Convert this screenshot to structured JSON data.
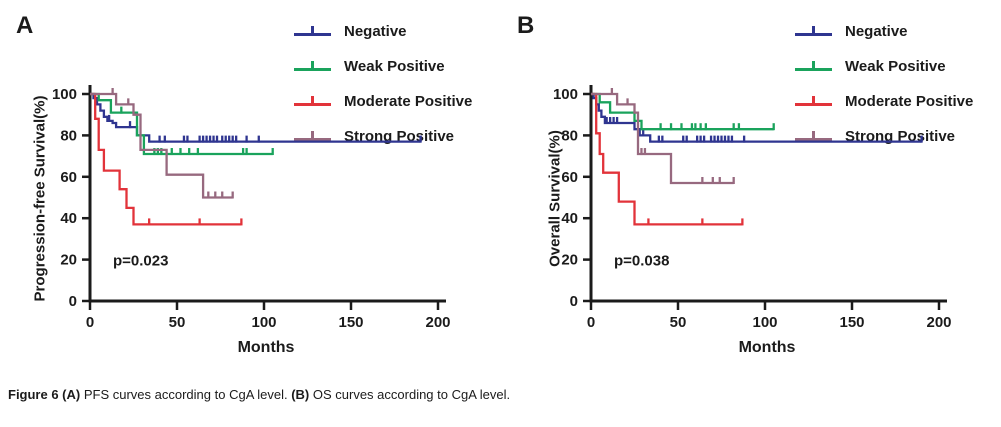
{
  "figure": {
    "caption": {
      "segments": [
        {
          "text": "Figure 6 (A)",
          "bold": true
        },
        {
          "text": " PFS curves according to CgA level. ",
          "bold": false
        },
        {
          "text": "(B)",
          "bold": true
        },
        {
          "text": " OS curves according to CgA level.",
          "bold": false
        }
      ]
    }
  },
  "colors": {
    "negative": "#2f3590",
    "weak_positive": "#1aa35c",
    "moderate_positive": "#e2333a",
    "strong_positive": "#97697f",
    "axis_and_text": "#1b1b1b"
  },
  "chart_data": [
    {
      "type": "line",
      "subtype": "kaplan-meier-step",
      "panel_label": "A",
      "title": "",
      "xlabel": "Months",
      "ylabel": "Progression-free Survival(%)",
      "annotation": "p=0.023",
      "xlim": [
        0,
        200
      ],
      "ylim": [
        0,
        100
      ],
      "x_ticks": [
        0,
        50,
        100,
        150,
        200
      ],
      "y_ticks": [
        0,
        20,
        40,
        60,
        80,
        100
      ],
      "grid": false,
      "legend_position": "top-right",
      "series": [
        {
          "name": "Negative",
          "color": "#2f3590",
          "points": [
            [
              0,
              100
            ],
            [
              2,
              98
            ],
            [
              4,
              95
            ],
            [
              6,
              92
            ],
            [
              8,
              89
            ],
            [
              10,
              87
            ],
            [
              13,
              86
            ],
            [
              15,
              84
            ],
            [
              27,
              80
            ],
            [
              34,
              77
            ],
            [
              190,
              77
            ]
          ],
          "censor_marks": [
            [
              11,
              87
            ],
            [
              23,
              84
            ],
            [
              40,
              77
            ],
            [
              43,
              77
            ],
            [
              54,
              77
            ],
            [
              56,
              77
            ],
            [
              63,
              77
            ],
            [
              65,
              77
            ],
            [
              67,
              77
            ],
            [
              69,
              77
            ],
            [
              71,
              77
            ],
            [
              73,
              77
            ],
            [
              76,
              77
            ],
            [
              78,
              77
            ],
            [
              80,
              77
            ],
            [
              82,
              77
            ],
            [
              84,
              77
            ],
            [
              90,
              77
            ],
            [
              97,
              77
            ],
            [
              190,
              77
            ]
          ]
        },
        {
          "name": "Weak Positive",
          "color": "#1aa35c",
          "points": [
            [
              0,
              100
            ],
            [
              5,
              97
            ],
            [
              12,
              91
            ],
            [
              27,
              80
            ],
            [
              31,
              71
            ],
            [
              105,
              71
            ]
          ],
          "censor_marks": [
            [
              18,
              91
            ],
            [
              37,
              71
            ],
            [
              39,
              71
            ],
            [
              41,
              71
            ],
            [
              47,
              71
            ],
            [
              52,
              71
            ],
            [
              57,
              71
            ],
            [
              62,
              71
            ],
            [
              88,
              71
            ],
            [
              90,
              71
            ],
            [
              105,
              71
            ]
          ]
        },
        {
          "name": "Moderate Positive",
          "color": "#e2333a",
          "points": [
            [
              0,
              100
            ],
            [
              3,
              88
            ],
            [
              5,
              73
            ],
            [
              8,
              63
            ],
            [
              17,
              54
            ],
            [
              21,
              45
            ],
            [
              25,
              37
            ],
            [
              87,
              37
            ]
          ],
          "censor_marks": [
            [
              34,
              37
            ],
            [
              63,
              37
            ],
            [
              87,
              37
            ]
          ]
        },
        {
          "name": "Strong Positive",
          "color": "#97697f",
          "points": [
            [
              0,
              100
            ],
            [
              15,
              95
            ],
            [
              25,
              90
            ],
            [
              29,
              73
            ],
            [
              44,
              61
            ],
            [
              65,
              50
            ],
            [
              82,
              50
            ]
          ],
          "censor_marks": [
            [
              13,
              100
            ],
            [
              22,
              95
            ],
            [
              68,
              50
            ],
            [
              72,
              50
            ],
            [
              76,
              50
            ],
            [
              82,
              50
            ]
          ]
        }
      ]
    },
    {
      "type": "line",
      "subtype": "kaplan-meier-step",
      "panel_label": "B",
      "title": "",
      "xlabel": "Months",
      "ylabel": "Overall Survival(%)",
      "annotation": "p=0.038",
      "xlim": [
        0,
        200
      ],
      "ylim": [
        0,
        100
      ],
      "x_ticks": [
        0,
        50,
        100,
        150,
        200
      ],
      "y_ticks": [
        0,
        20,
        40,
        60,
        80,
        100
      ],
      "grid": false,
      "legend_position": "top-right",
      "series": [
        {
          "name": "Negative",
          "color": "#2f3590",
          "points": [
            [
              0,
              100
            ],
            [
              1.5,
              98
            ],
            [
              3,
              95
            ],
            [
              4.5,
              92
            ],
            [
              6,
              89
            ],
            [
              8,
              86
            ],
            [
              25,
              83
            ],
            [
              28,
              80
            ],
            [
              34,
              77
            ],
            [
              190,
              77
            ]
          ],
          "censor_marks": [
            [
              9,
              86
            ],
            [
              11,
              86
            ],
            [
              13,
              86
            ],
            [
              15,
              86
            ],
            [
              30,
              80
            ],
            [
              39,
              77
            ],
            [
              41,
              77
            ],
            [
              53,
              77
            ],
            [
              55,
              77
            ],
            [
              61,
              77
            ],
            [
              63,
              77
            ],
            [
              65,
              77
            ],
            [
              69,
              77
            ],
            [
              71,
              77
            ],
            [
              73,
              77
            ],
            [
              75,
              77
            ],
            [
              77,
              77
            ],
            [
              79,
              77
            ],
            [
              81,
              77
            ],
            [
              88,
              77
            ],
            [
              190,
              77
            ]
          ]
        },
        {
          "name": "Weak Positive",
          "color": "#1aa35c",
          "points": [
            [
              0,
              100
            ],
            [
              5,
              96
            ],
            [
              11,
              91
            ],
            [
              25,
              87
            ],
            [
              29,
              83
            ],
            [
              105,
              83
            ]
          ],
          "censor_marks": [
            [
              40,
              83
            ],
            [
              46,
              83
            ],
            [
              52,
              83
            ],
            [
              58,
              83
            ],
            [
              60,
              83
            ],
            [
              63,
              83
            ],
            [
              66,
              83
            ],
            [
              82,
              83
            ],
            [
              85,
              83
            ],
            [
              105,
              83
            ]
          ]
        },
        {
          "name": "Moderate Positive",
          "color": "#e2333a",
          "points": [
            [
              0,
              100
            ],
            [
              3,
              81
            ],
            [
              5,
              71
            ],
            [
              7,
              62
            ],
            [
              16,
              48
            ],
            [
              25,
              37
            ],
            [
              87,
              37
            ]
          ],
          "censor_marks": [
            [
              33,
              37
            ],
            [
              64,
              37
            ],
            [
              87,
              37
            ]
          ]
        },
        {
          "name": "Strong Positive",
          "color": "#97697f",
          "points": [
            [
              0,
              100
            ],
            [
              15,
              95
            ],
            [
              25,
              91
            ],
            [
              27,
              71
            ],
            [
              46,
              57
            ],
            [
              82,
              57
            ]
          ],
          "censor_marks": [
            [
              12,
              100
            ],
            [
              21,
              95
            ],
            [
              29,
              71
            ],
            [
              31,
              71
            ],
            [
              64,
              57
            ],
            [
              70,
              57
            ],
            [
              74,
              57
            ],
            [
              82,
              57
            ]
          ]
        }
      ]
    }
  ]
}
